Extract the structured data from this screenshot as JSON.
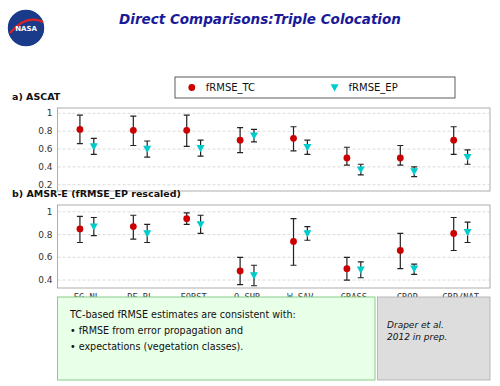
{
  "chart_data": [
    {
      "type": "errorbar",
      "title": "Direct Comparisons:Triple Colocation",
      "subtitle": "a) ASCAT",
      "annotations": [
        "NASA"
      ],
      "categories": [
        "EG-NL",
        "DE-BL",
        "FORST",
        "O.SHR",
        "W.SAV",
        "GRASS",
        "CROP",
        "CRP/NAT"
      ],
      "tick_labels": "y",
      "ylim": [
        0.13,
        1.06
      ],
      "yticks": [
        0.2,
        0.4,
        0.6,
        0.8,
        1
      ],
      "grid": true,
      "legend": "top",
      "series": [
        {
          "name": "fRMSE_TC",
          "color": "#CC0000",
          "marker": "circle",
          "values": [
            0.82,
            0.81,
            0.81,
            0.7,
            0.72,
            0.5,
            0.5,
            0.7
          ],
          "error_upper": [
            0.16,
            0.16,
            0.17,
            0.14,
            0.13,
            0.12,
            0.14,
            0.15
          ],
          "error_lower": [
            0.16,
            0.17,
            0.18,
            0.14,
            0.14,
            0.08,
            0.08,
            0.16
          ]
        },
        {
          "name": "fRMSE_EP",
          "color": "#00CCCC",
          "marker": "triangle-down",
          "values": [
            0.63,
            0.6,
            0.61,
            0.75,
            0.62,
            0.37,
            0.35,
            0.51
          ],
          "error_upper": [
            0.09,
            0.09,
            0.09,
            0.07,
            0.08,
            0.06,
            0.05,
            0.08
          ],
          "error_lower": [
            0.09,
            0.09,
            0.09,
            0.07,
            0.08,
            0.06,
            0.06,
            0.08
          ]
        }
      ]
    },
    {
      "type": "errorbar",
      "subtitle": "b) AMSR-E (fRMSE_EP rescaled)",
      "annotations": [
        "TC-based fRMSE estimates are consistent with:\n• fRMSE from error propagation and\n• expectations (vegetation classes).",
        "Draper et al.\n2012 in prep."
      ],
      "categories": [
        "EG-NL",
        "DE-BL",
        "FORST",
        "O.SHR",
        "W.SAV",
        "GRASS",
        "CROP",
        "CRP/NAT"
      ],
      "ylim": [
        0.33,
        1.06
      ],
      "yticks": [
        0.4,
        0.6,
        0.8,
        1
      ],
      "grid": true,
      "series": [
        {
          "name": "fRMSE_TC",
          "color": "#CC0000",
          "marker": "circle",
          "values": [
            0.85,
            0.87,
            0.94,
            0.48,
            0.74,
            0.5,
            0.66,
            0.81
          ],
          "error_upper": [
            0.11,
            0.1,
            0.05,
            0.12,
            0.2,
            0.1,
            0.15,
            0.14
          ],
          "error_lower": [
            0.12,
            0.11,
            0.05,
            0.12,
            0.21,
            0.1,
            0.16,
            0.15
          ]
        },
        {
          "name": "fRMSE_EP",
          "color": "#00CCCC",
          "marker": "triangle-down",
          "values": [
            0.87,
            0.81,
            0.89,
            0.44,
            0.81,
            0.49,
            0.5,
            0.82
          ],
          "error_upper": [
            0.08,
            0.08,
            0.08,
            0.09,
            0.06,
            0.07,
            0.04,
            0.09
          ],
          "error_lower": [
            0.08,
            0.08,
            0.08,
            0.09,
            0.06,
            0.07,
            0.05,
            0.09
          ]
        }
      ]
    }
  ]
}
